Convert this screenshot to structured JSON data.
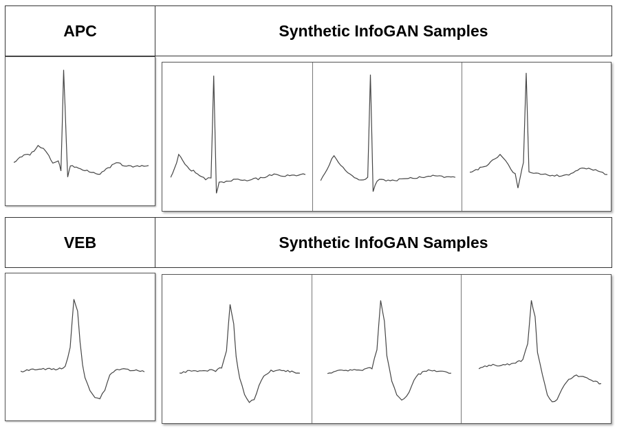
{
  "rows": [
    {
      "label": "APC",
      "samples_header": "Synthetic InfoGAN Samples",
      "traces": [
        [
          [
            0,
            0.72
          ],
          [
            0.06,
            0.67
          ],
          [
            0.12,
            0.66
          ],
          [
            0.18,
            0.6
          ],
          [
            0.22,
            0.62
          ],
          [
            0.26,
            0.67
          ],
          [
            0.29,
            0.72
          ],
          [
            0.33,
            0.7
          ],
          [
            0.35,
            0.78
          ],
          [
            0.37,
            0.05
          ],
          [
            0.38,
            0.3
          ],
          [
            0.4,
            0.82
          ],
          [
            0.42,
            0.74
          ],
          [
            0.48,
            0.76
          ],
          [
            0.56,
            0.78
          ],
          [
            0.64,
            0.8
          ],
          [
            0.7,
            0.76
          ],
          [
            0.76,
            0.72
          ],
          [
            0.82,
            0.74
          ],
          [
            0.9,
            0.75
          ],
          [
            1,
            0.74
          ]
        ],
        [
          [
            0,
            0.78
          ],
          [
            0.03,
            0.72
          ],
          [
            0.06,
            0.62
          ],
          [
            0.09,
            0.66
          ],
          [
            0.14,
            0.72
          ],
          [
            0.2,
            0.75
          ],
          [
            0.26,
            0.8
          ],
          [
            0.3,
            0.78
          ],
          [
            0.32,
            0.05
          ],
          [
            0.34,
            0.9
          ],
          [
            0.36,
            0.82
          ],
          [
            0.45,
            0.8
          ],
          [
            0.55,
            0.8
          ],
          [
            0.65,
            0.79
          ],
          [
            0.75,
            0.76
          ],
          [
            0.85,
            0.77
          ],
          [
            1,
            0.76
          ]
        ],
        [
          [
            0,
            0.8
          ],
          [
            0.05,
            0.72
          ],
          [
            0.1,
            0.62
          ],
          [
            0.15,
            0.7
          ],
          [
            0.22,
            0.76
          ],
          [
            0.3,
            0.8
          ],
          [
            0.35,
            0.78
          ],
          [
            0.37,
            0.05
          ],
          [
            0.39,
            0.88
          ],
          [
            0.42,
            0.8
          ],
          [
            0.55,
            0.8
          ],
          [
            0.65,
            0.79
          ],
          [
            0.75,
            0.78
          ],
          [
            0.85,
            0.77
          ],
          [
            1,
            0.78
          ]
        ],
        [
          [
            0,
            0.75
          ],
          [
            0.06,
            0.72
          ],
          [
            0.12,
            0.7
          ],
          [
            0.18,
            0.65
          ],
          [
            0.22,
            0.62
          ],
          [
            0.26,
            0.66
          ],
          [
            0.3,
            0.72
          ],
          [
            0.33,
            0.76
          ],
          [
            0.35,
            0.86
          ],
          [
            0.37,
            0.76
          ],
          [
            0.39,
            0.68
          ],
          [
            0.41,
            0.03
          ],
          [
            0.43,
            0.74
          ],
          [
            0.55,
            0.76
          ],
          [
            0.65,
            0.77
          ],
          [
            0.72,
            0.76
          ],
          [
            0.8,
            0.72
          ],
          [
            0.88,
            0.72
          ],
          [
            1,
            0.76
          ]
        ]
      ]
    },
    {
      "label": "VEB",
      "samples_header": "Synthetic InfoGAN Samples",
      "traces": [
        [
          [
            0,
            0.68
          ],
          [
            0.1,
            0.66
          ],
          [
            0.2,
            0.66
          ],
          [
            0.3,
            0.66
          ],
          [
            0.36,
            0.64
          ],
          [
            0.4,
            0.5
          ],
          [
            0.43,
            0.12
          ],
          [
            0.46,
            0.22
          ],
          [
            0.48,
            0.45
          ],
          [
            0.5,
            0.62
          ],
          [
            0.52,
            0.72
          ],
          [
            0.56,
            0.82
          ],
          [
            0.6,
            0.88
          ],
          [
            0.64,
            0.88
          ],
          [
            0.68,
            0.82
          ],
          [
            0.72,
            0.7
          ],
          [
            0.78,
            0.66
          ],
          [
            0.85,
            0.66
          ],
          [
            1,
            0.68
          ]
        ],
        [
          [
            0,
            0.68
          ],
          [
            0.1,
            0.66
          ],
          [
            0.2,
            0.66
          ],
          [
            0.3,
            0.66
          ],
          [
            0.35,
            0.64
          ],
          [
            0.39,
            0.5
          ],
          [
            0.42,
            0.15
          ],
          [
            0.45,
            0.3
          ],
          [
            0.47,
            0.55
          ],
          [
            0.5,
            0.72
          ],
          [
            0.54,
            0.84
          ],
          [
            0.58,
            0.9
          ],
          [
            0.62,
            0.88
          ],
          [
            0.66,
            0.78
          ],
          [
            0.7,
            0.7
          ],
          [
            0.76,
            0.66
          ],
          [
            0.85,
            0.66
          ],
          [
            1,
            0.68
          ]
        ],
        [
          [
            0,
            0.68
          ],
          [
            0.1,
            0.66
          ],
          [
            0.2,
            0.66
          ],
          [
            0.3,
            0.65
          ],
          [
            0.36,
            0.64
          ],
          [
            0.4,
            0.5
          ],
          [
            0.43,
            0.12
          ],
          [
            0.46,
            0.28
          ],
          [
            0.48,
            0.55
          ],
          [
            0.52,
            0.74
          ],
          [
            0.56,
            0.84
          ],
          [
            0.6,
            0.88
          ],
          [
            0.64,
            0.86
          ],
          [
            0.68,
            0.78
          ],
          [
            0.72,
            0.7
          ],
          [
            0.8,
            0.66
          ],
          [
            0.88,
            0.66
          ],
          [
            1,
            0.68
          ]
        ],
        [
          [
            0,
            0.64
          ],
          [
            0.1,
            0.62
          ],
          [
            0.2,
            0.62
          ],
          [
            0.3,
            0.6
          ],
          [
            0.36,
            0.58
          ],
          [
            0.4,
            0.45
          ],
          [
            0.43,
            0.12
          ],
          [
            0.46,
            0.25
          ],
          [
            0.48,
            0.52
          ],
          [
            0.52,
            0.7
          ],
          [
            0.56,
            0.84
          ],
          [
            0.6,
            0.9
          ],
          [
            0.64,
            0.88
          ],
          [
            0.68,
            0.8
          ],
          [
            0.72,
            0.74
          ],
          [
            0.78,
            0.7
          ],
          [
            0.85,
            0.7
          ],
          [
            0.92,
            0.74
          ],
          [
            1,
            0.76
          ]
        ]
      ]
    }
  ]
}
